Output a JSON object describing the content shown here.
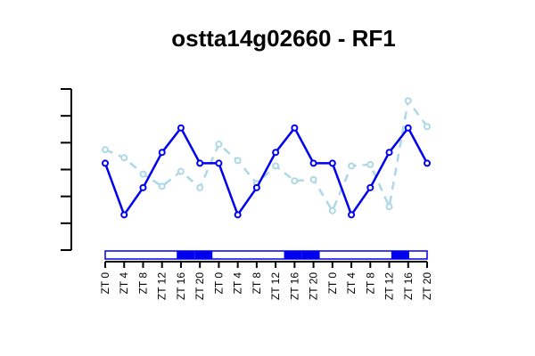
{
  "chart_data": {
    "type": "line",
    "title": "ostta14g02660 - RF1",
    "xlabel": "",
    "ylabel": "",
    "categories": [
      "ZT 0",
      "ZT 4",
      "ZT 8",
      "ZT 12",
      "ZT 16",
      "ZT 20",
      "ZT 0",
      "ZT 4",
      "ZT 8",
      "ZT 12",
      "ZT 16",
      "ZT 20",
      "ZT 0",
      "ZT 4",
      "ZT 8",
      "ZT 12",
      "ZT 16",
      "ZT 20"
    ],
    "ylim": [
      0,
      6
    ],
    "y_ticks_labeled": false,
    "grid": false,
    "series": [
      {
        "style": "solid",
        "color": "#0000ee",
        "values": [
          3.2,
          1.3,
          2.3,
          3.6,
          4.5,
          3.2,
          3.2,
          1.3,
          2.3,
          3.6,
          4.5,
          3.2,
          3.2,
          1.3,
          2.3,
          3.6,
          4.5,
          3.2
        ]
      },
      {
        "style": "dashed",
        "color": "#add8e6",
        "values": [
          3.7,
          3.4,
          2.8,
          2.35,
          2.9,
          2.3,
          3.9,
          3.3,
          2.45,
          3.1,
          2.55,
          2.6,
          1.45,
          3.1,
          3.15,
          1.6,
          5.5,
          4.55
        ]
      }
    ],
    "light_dark_bar": [
      "light",
      "light",
      "light",
      "light",
      "dark",
      "dark",
      "light",
      "light",
      "light",
      "light",
      "dark",
      "dark",
      "light",
      "light",
      "light",
      "light",
      "dark",
      "light"
    ],
    "bar_colors": {
      "light": "#ffffff",
      "dark": "#0000ee",
      "border": "#0000ee"
    }
  }
}
